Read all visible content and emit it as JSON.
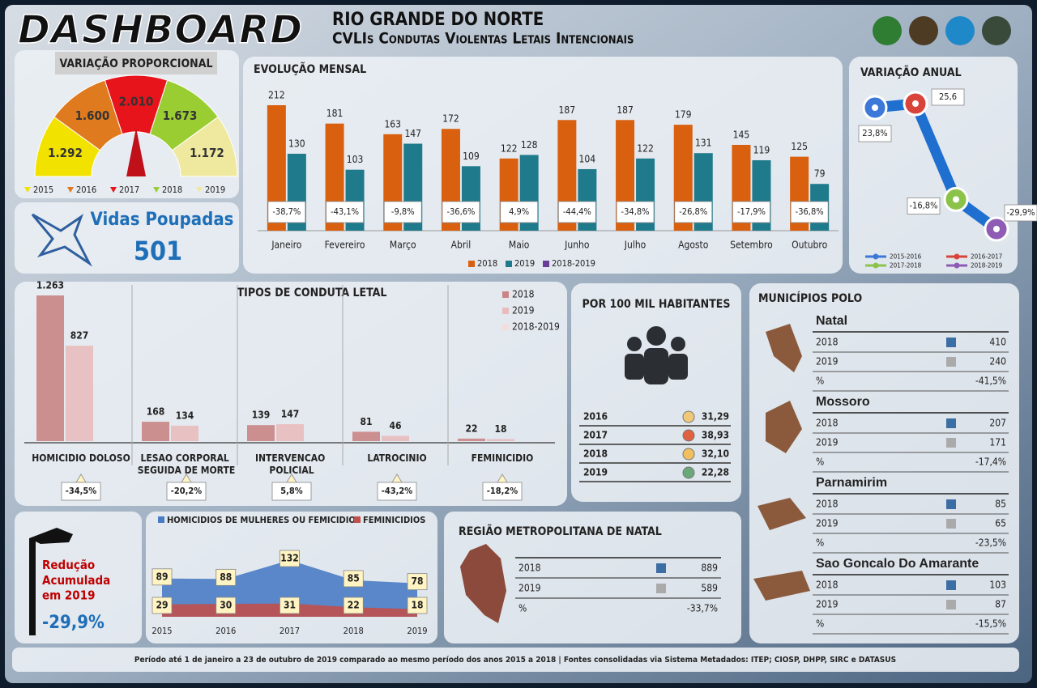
{
  "header": {
    "title": "DASHBOARD",
    "state": "RIO GRANDE DO NORTE",
    "subtitle": "CVLIs Condutas Violentas Letais Intencionais"
  },
  "chart_data": [
    {
      "type": "gauge",
      "title": "VARIAÇÃO PROPORCIONAL",
      "categories": [
        "2015",
        "2016",
        "2017",
        "2018",
        "2019"
      ],
      "values": [
        1292,
        1600,
        2010,
        1673,
        1172
      ],
      "value_labels": [
        "1.292",
        "1.600",
        "2.010",
        "1.673",
        "1.172"
      ],
      "colors": [
        "#f2e200",
        "#e07a1e",
        "#e8141c",
        "#9acd32",
        "#efe9a0"
      ]
    },
    {
      "type": "bar",
      "title": "EVOLUÇÃO MENSAL",
      "categories": [
        "Janeiro",
        "Fevereiro",
        "Março",
        "Abril",
        "Maio",
        "Junho",
        "Julho",
        "Agosto",
        "Setembro",
        "Outubro"
      ],
      "series": [
        {
          "name": "2018",
          "color": "#d9600f",
          "values": [
            212,
            181,
            163,
            172,
            122,
            187,
            187,
            179,
            145,
            125
          ]
        },
        {
          "name": "2019",
          "color": "#1f7a8c",
          "values": [
            130,
            103,
            147,
            109,
            128,
            104,
            122,
            131,
            119,
            79
          ]
        },
        {
          "name": "2018-2019",
          "color": "#6a3d9a",
          "values": [
            -38.7,
            -43.1,
            -9.8,
            -36.6,
            4.9,
            -44.4,
            -34.8,
            -26.8,
            -17.9,
            -36.8
          ],
          "value_labels": [
            "-38,7%",
            "-43,1%",
            "-9,8%",
            "-36,6%",
            "4,9%",
            "-44,4%",
            "-34,8%",
            "-26,8%",
            "-17,9%",
            "-36,8%"
          ]
        }
      ]
    },
    {
      "type": "line",
      "title": "VARIAÇÃO ANUAL",
      "categories": [
        "2015-2016",
        "2016-2017",
        "2017-2018",
        "2018-2019"
      ],
      "values": [
        23.8,
        25.6,
        -16.8,
        -29.9
      ],
      "value_labels": [
        "23,8%",
        "25,6",
        "-16,8%",
        "-29,9%"
      ],
      "colors": [
        "#3b78d8",
        "#d9443a",
        "#8bc34a",
        "#8e5bb5"
      ],
      "line_color": "#1f6fd0"
    },
    {
      "type": "bar",
      "title": "TIPOS DE CONDUTA LETAL",
      "categories": [
        "HOMICIDIO DOLOSO",
        "LESAO CORPORAL SEGUIDA DE MORTE",
        "INTERVENCAO POLICIAL",
        "LATROCINIO",
        "FEMINICIDIO"
      ],
      "series": [
        {
          "name": "2018",
          "color": "#c98585",
          "values": [
            1263,
            168,
            139,
            81,
            22
          ],
          "value_labels": [
            "1.263",
            "168",
            "139",
            "81",
            "22"
          ]
        },
        {
          "name": "2019",
          "color": "#e8bcbc",
          "values": [
            827,
            134,
            147,
            46,
            18
          ]
        },
        {
          "name": "2018-2019",
          "color": "#f3dede",
          "values": [
            -34.5,
            -20.2,
            5.8,
            -43.2,
            -18.2
          ],
          "value_labels": [
            "-34,5%",
            "-20,2%",
            "5,8%",
            "-43,2%",
            "-18,2%"
          ]
        }
      ]
    },
    {
      "type": "area",
      "categories": [
        "2015",
        "2016",
        "2017",
        "2018",
        "2019"
      ],
      "series": [
        {
          "name": "HOMICIDIOS DE MULHERES OU FEMICIDIOS",
          "color": "#4a7cc4",
          "values": [
            89,
            88,
            132,
            85,
            78
          ]
        },
        {
          "name": "FEMINICIDIOS",
          "color": "#c0504d",
          "values": [
            29,
            30,
            31,
            22,
            18
          ]
        }
      ]
    }
  ],
  "vidas_poupadas": {
    "label": "Vidas Poupadas",
    "value": "501"
  },
  "per_100k": {
    "title": "POR 100 MIL HABITANTES",
    "rows": [
      [
        "2016",
        "31,29"
      ],
      [
        "2017",
        "38,93"
      ],
      [
        "2018",
        "32,10"
      ],
      [
        "2019",
        "22,28"
      ]
    ]
  },
  "municipios": {
    "title": "MUNICÍPIOS POLO",
    "items": [
      {
        "name": "Natal",
        "rows": [
          [
            "2018",
            "410"
          ],
          [
            "2019",
            "240"
          ],
          [
            "%",
            "-41,5%"
          ]
        ]
      },
      {
        "name": "Mossoro",
        "rows": [
          [
            "2018",
            "207"
          ],
          [
            "2019",
            "171"
          ],
          [
            "%",
            "-17,4%"
          ]
        ]
      },
      {
        "name": "Parnamirim",
        "rows": [
          [
            "2018",
            "85"
          ],
          [
            "2019",
            "65"
          ],
          [
            "%",
            "-23,5%"
          ]
        ]
      },
      {
        "name": "Sao Goncalo Do Amarante",
        "rows": [
          [
            "2018",
            "103"
          ],
          [
            "2019",
            "87"
          ],
          [
            "%",
            "-15,5%"
          ]
        ]
      }
    ]
  },
  "regiao": {
    "title": "REGIÃO METROPOLITANA DE NATAL",
    "rows": [
      [
        "2018",
        "889"
      ],
      [
        "2019",
        "589"
      ],
      [
        "%",
        "-33,7%"
      ]
    ]
  },
  "reducao": {
    "label": "Redução Acumulada em 2019",
    "value": "-29,9%"
  },
  "footer": "Período até 1 de janeiro a 23 de outubro de 2019 comparado ao mesmo período dos anos 2015 a 2018 | Fontes consolidadas via Sistema Metadados: ITEP; CIOSP, DHPP, SIRC e DATASUS"
}
